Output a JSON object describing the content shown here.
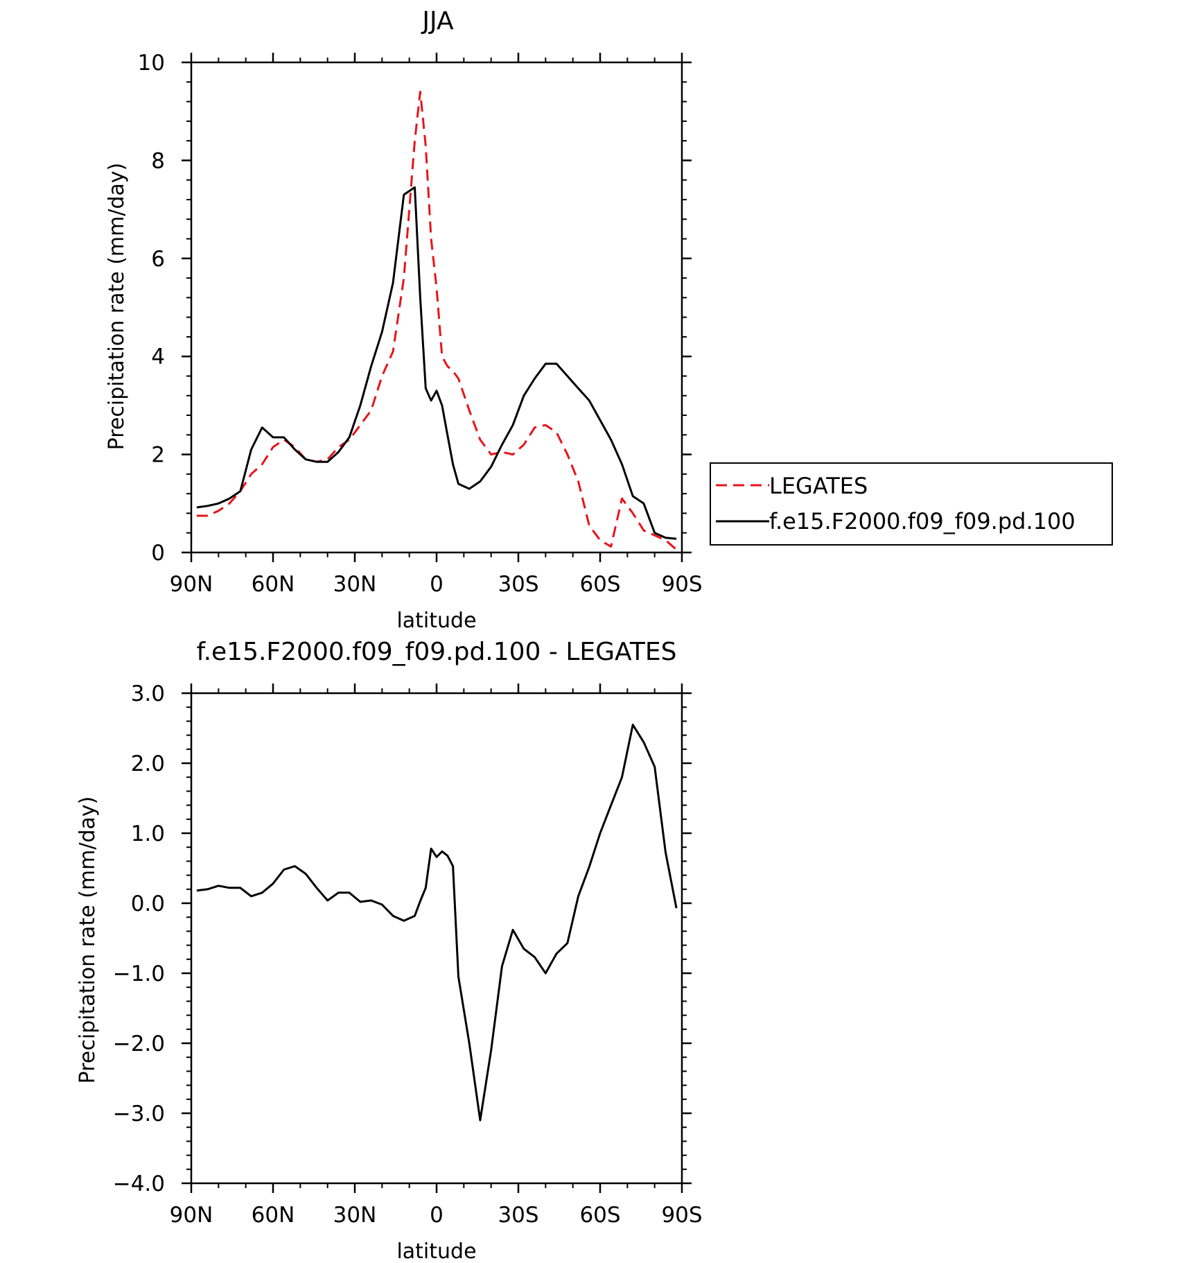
{
  "chart_data": [
    {
      "type": "line",
      "title": "JJA",
      "xlabel": "latitude",
      "ylabel": "Precipitation rate (mm/day)",
      "xlim": [
        -90,
        90
      ],
      "ylim": [
        0,
        10
      ],
      "x_ticks": [
        -90,
        -60,
        -30,
        0,
        30,
        60,
        90
      ],
      "x_tick_labels": [
        "90N",
        "60N",
        "30N",
        "0",
        "30S",
        "60S",
        "90S"
      ],
      "y_ticks": [
        0,
        2,
        4,
        6,
        8,
        10
      ],
      "y_tick_labels": [
        "0",
        "2",
        "4",
        "6",
        "8",
        "10"
      ],
      "grid": false,
      "legend_position": "right",
      "x": [
        -88,
        -84,
        -80,
        -76,
        -72,
        -68,
        -64,
        -60,
        -56,
        -52,
        -48,
        -44,
        -40,
        -36,
        -32,
        -28,
        -24,
        -20,
        -16,
        -12,
        -8,
        -6,
        -4,
        -2,
        0,
        2,
        4,
        6,
        8,
        12,
        16,
        20,
        24,
        28,
        32,
        36,
        40,
        44,
        48,
        52,
        56,
        60,
        64,
        68,
        72,
        76,
        80,
        84,
        88
      ],
      "series": [
        {
          "name": "LEGATES",
          "color": "#e8131a",
          "style": "dashed",
          "values": [
            0.75,
            0.75,
            0.85,
            1.0,
            1.25,
            1.6,
            1.8,
            2.15,
            2.3,
            2.15,
            1.9,
            1.85,
            1.9,
            2.15,
            2.3,
            2.6,
            2.9,
            3.6,
            4.1,
            5.6,
            8.4,
            9.4,
            8.3,
            6.4,
            5.4,
            4.0,
            3.8,
            3.7,
            3.55,
            2.9,
            2.3,
            2.0,
            2.05,
            2.0,
            2.2,
            2.55,
            2.6,
            2.45,
            2.0,
            1.45,
            0.55,
            0.25,
            0.12,
            1.1,
            0.8,
            0.45,
            0.35,
            0.25,
            0.06
          ]
        },
        {
          "name": "f.e15.F2000.f09_f09.pd.100",
          "color": "#000000",
          "style": "solid",
          "values": [
            0.92,
            0.95,
            1.0,
            1.1,
            1.25,
            2.1,
            2.55,
            2.35,
            2.35,
            2.1,
            1.9,
            1.85,
            1.85,
            2.05,
            2.35,
            3.0,
            3.8,
            4.5,
            5.5,
            7.3,
            7.45,
            5.2,
            3.35,
            3.1,
            3.3,
            3.0,
            2.4,
            1.8,
            1.4,
            1.3,
            1.45,
            1.75,
            2.2,
            2.6,
            3.2,
            3.55,
            3.85,
            3.85,
            3.6,
            3.35,
            3.1,
            2.7,
            2.3,
            1.8,
            1.15,
            1.0,
            0.4,
            0.3,
            0.28
          ]
        }
      ]
    },
    {
      "type": "line",
      "title": "f.e15.F2000.f09_f09.pd.100 - LEGATES",
      "xlabel": "latitude",
      "ylabel": "Precipitation rate (mm/day)",
      "xlim": [
        -90,
        90
      ],
      "ylim": [
        -4.0,
        3.0
      ],
      "x_ticks": [
        -90,
        -60,
        -30,
        0,
        30,
        60,
        90
      ],
      "x_tick_labels": [
        "90N",
        "60N",
        "30N",
        "0",
        "30S",
        "60S",
        "90S"
      ],
      "y_ticks": [
        -4.0,
        -3.0,
        -2.0,
        -1.0,
        0.0,
        1.0,
        2.0,
        3.0
      ],
      "y_tick_labels": [
        "−4.0",
        "−3.0",
        "−2.0",
        "−1.0",
        "0.0",
        "1.0",
        "2.0",
        "3.0"
      ],
      "grid": false,
      "x": [
        -88,
        -84,
        -80,
        -76,
        -72,
        -68,
        -64,
        -60,
        -56,
        -52,
        -48,
        -44,
        -40,
        -36,
        -32,
        -28,
        -24,
        -20,
        -16,
        -12,
        -8,
        -6,
        -4,
        -2,
        0,
        2,
        4,
        6,
        8,
        12,
        16,
        20,
        24,
        28,
        32,
        36,
        40,
        44,
        48,
        52,
        56,
        60,
        64,
        68,
        72,
        76,
        80,
        84,
        88
      ],
      "series": [
        {
          "color": "#000000",
          "style": "solid",
          "values": [
            0.18,
            0.2,
            0.25,
            0.22,
            0.22,
            0.1,
            0.15,
            0.28,
            0.48,
            0.53,
            0.42,
            0.22,
            0.04,
            0.15,
            0.15,
            0.02,
            0.04,
            -0.02,
            -0.18,
            -0.25,
            -0.18,
            0.03,
            0.22,
            0.78,
            0.66,
            0.74,
            0.68,
            0.53,
            -1.05,
            -2.0,
            -3.1,
            -2.1,
            -0.9,
            -0.38,
            -0.65,
            -0.77,
            -1.0,
            -0.72,
            -0.57,
            0.1,
            0.52,
            1.0,
            1.4,
            1.8,
            2.55,
            2.3,
            1.95,
            0.73,
            -0.07
          ]
        }
      ]
    }
  ]
}
